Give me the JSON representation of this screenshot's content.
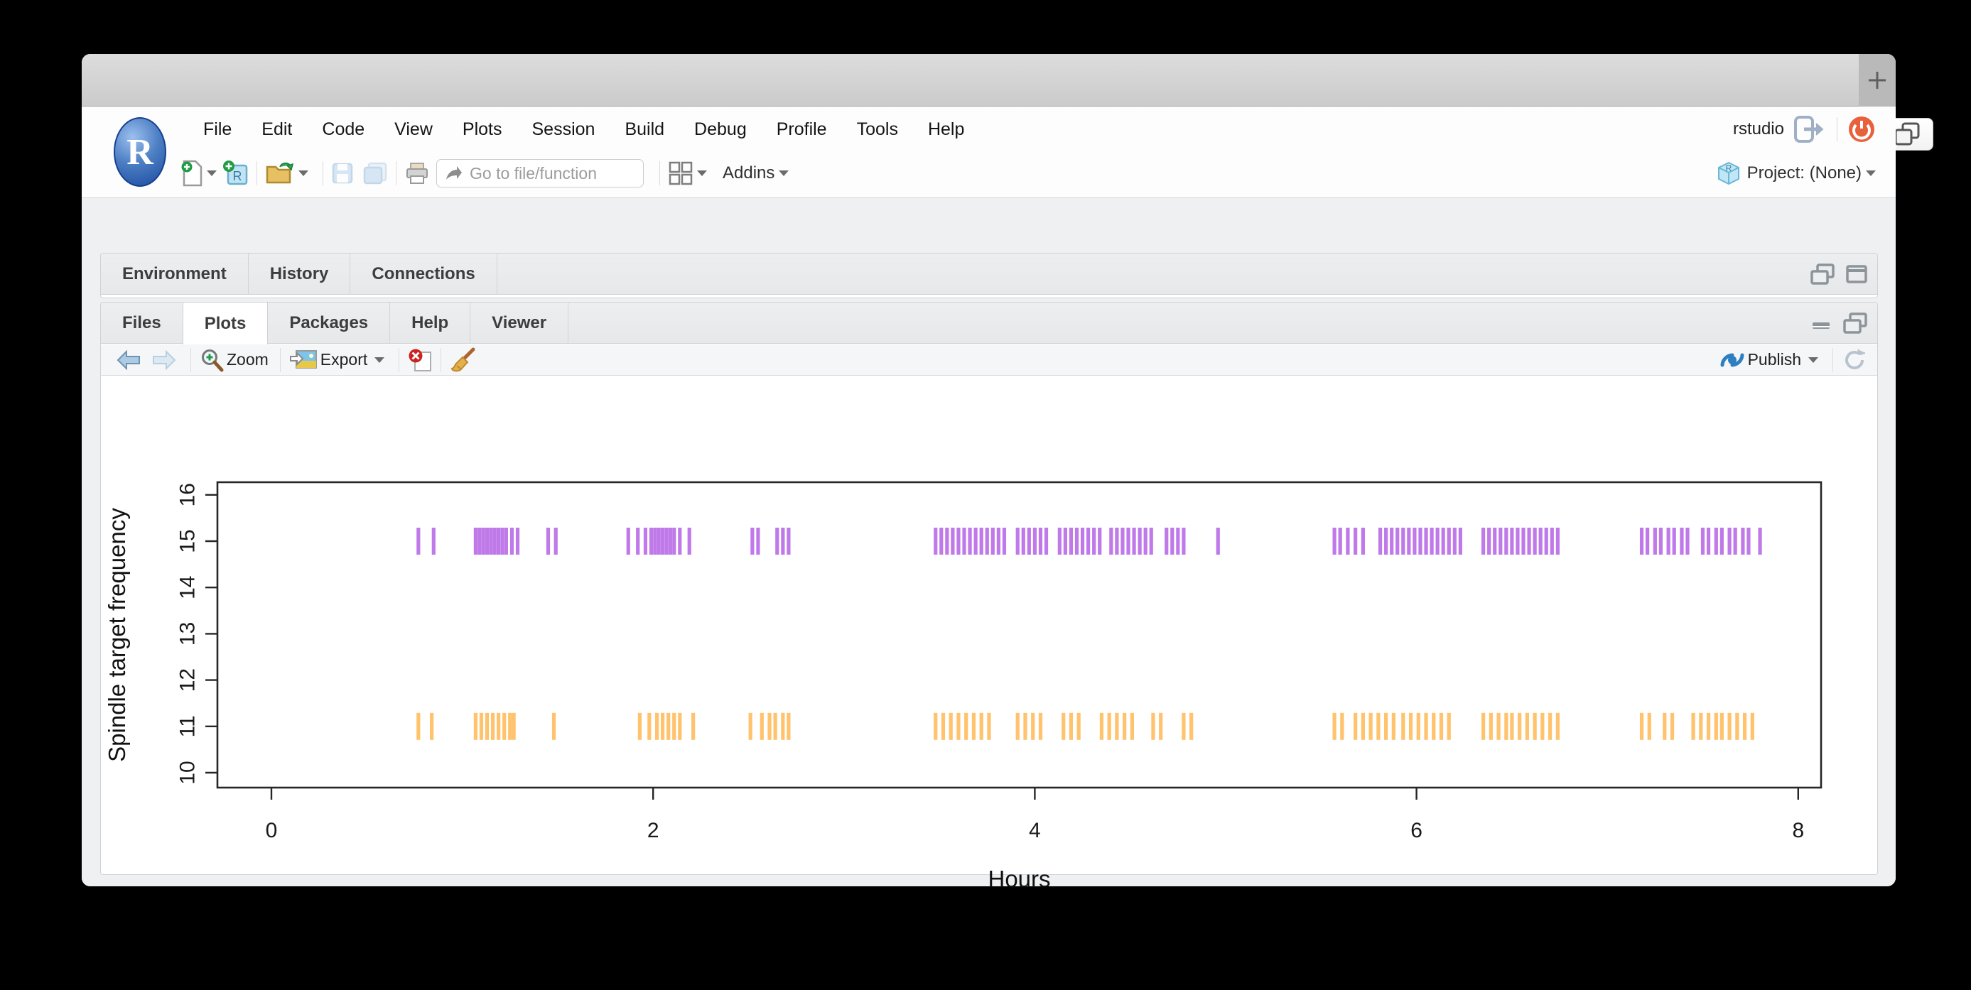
{
  "browser": {
    "url": "localhost",
    "controls": [
      "close",
      "minimize",
      "zoom"
    ],
    "colors": {
      "close": "#f95f56",
      "minimize": "#fdbc2e",
      "zoom": "#29c73f"
    }
  },
  "rstudio": {
    "menu": [
      "File",
      "Edit",
      "Code",
      "View",
      "Plots",
      "Session",
      "Build",
      "Debug",
      "Profile",
      "Tools",
      "Help"
    ],
    "user": "rstudio",
    "toolbar": {
      "goto_placeholder": "Go to file/function",
      "addins_label": "Addins",
      "project_label": "Project: (None)"
    },
    "top_tabs": [
      "Environment",
      "History",
      "Connections"
    ],
    "bottom_tabs": [
      "Files",
      "Plots",
      "Packages",
      "Help",
      "Viewer"
    ],
    "active_bottom_tab": "Plots",
    "plot_toolbar": {
      "zoom_label": "Zoom",
      "export_label": "Export",
      "publish_label": "Publish"
    },
    "accent": {
      "publish_blue": "#2e7fc1",
      "power_orange": "#e8603c"
    }
  },
  "chart_data": {
    "type": "scatter",
    "subtype": "event-rug-plot",
    "title": "",
    "xlabel": "Hours",
    "ylabel": "Spindle target frequency",
    "xlim": [
      -0.3,
      8.1
    ],
    "ylim": [
      10,
      16
    ],
    "x_ticks": [
      0,
      2,
      4,
      6,
      8
    ],
    "y_ticks": [
      10,
      11,
      12,
      13,
      14,
      15,
      16
    ],
    "grid": false,
    "legend": false,
    "series": [
      {
        "name": "spindle-target-15",
        "y_value": 15,
        "color": "#9928dd",
        "times": [
          0.77,
          0.85,
          1.07,
          1.09,
          1.11,
          1.13,
          1.15,
          1.17,
          1.19,
          1.21,
          1.23,
          1.26,
          1.29,
          1.45,
          1.49,
          1.87,
          1.92,
          1.96,
          1.99,
          2.01,
          2.03,
          2.05,
          2.07,
          2.09,
          2.11,
          2.14,
          2.19,
          2.52,
          2.55,
          2.65,
          2.68,
          2.71,
          3.48,
          3.51,
          3.54,
          3.57,
          3.6,
          3.63,
          3.66,
          3.69,
          3.72,
          3.75,
          3.78,
          3.81,
          3.84,
          3.91,
          3.94,
          3.97,
          4.0,
          4.03,
          4.06,
          4.13,
          4.16,
          4.19,
          4.22,
          4.25,
          4.28,
          4.31,
          4.34,
          4.4,
          4.43,
          4.46,
          4.49,
          4.52,
          4.55,
          4.58,
          4.61,
          4.69,
          4.72,
          4.75,
          4.78,
          4.96,
          5.57,
          5.6,
          5.64,
          5.68,
          5.72,
          5.81,
          5.84,
          5.87,
          5.9,
          5.93,
          5.96,
          5.99,
          6.02,
          6.05,
          6.08,
          6.11,
          6.14,
          6.17,
          6.2,
          6.23,
          6.35,
          6.38,
          6.41,
          6.44,
          6.47,
          6.5,
          6.53,
          6.56,
          6.59,
          6.62,
          6.65,
          6.68,
          6.71,
          6.74,
          7.18,
          7.21,
          7.25,
          7.28,
          7.32,
          7.35,
          7.39,
          7.42,
          7.5,
          7.53,
          7.57,
          7.6,
          7.64,
          7.67,
          7.71,
          7.74,
          7.8
        ]
      },
      {
        "name": "spindle-target-11",
        "y_value": 11,
        "color": "#ff9e14",
        "times": [
          0.77,
          0.84,
          1.07,
          1.1,
          1.13,
          1.16,
          1.19,
          1.22,
          1.25,
          1.27,
          1.48,
          1.93,
          1.98,
          2.02,
          2.05,
          2.08,
          2.11,
          2.14,
          2.21,
          2.51,
          2.57,
          2.61,
          2.64,
          2.68,
          2.71,
          3.48,
          3.52,
          3.56,
          3.6,
          3.64,
          3.68,
          3.72,
          3.76,
          3.91,
          3.95,
          3.99,
          4.03,
          4.15,
          4.19,
          4.23,
          4.35,
          4.39,
          4.43,
          4.47,
          4.51,
          4.62,
          4.66,
          4.78,
          4.82,
          5.57,
          5.61,
          5.68,
          5.72,
          5.76,
          5.8,
          5.84,
          5.88,
          5.93,
          5.97,
          6.01,
          6.05,
          6.09,
          6.13,
          6.17,
          6.35,
          6.39,
          6.43,
          6.47,
          6.5,
          6.54,
          6.58,
          6.62,
          6.66,
          6.7,
          6.74,
          7.18,
          7.22,
          7.3,
          7.34,
          7.45,
          7.49,
          7.53,
          7.57,
          7.6,
          7.64,
          7.68,
          7.72,
          7.76
        ]
      }
    ]
  }
}
